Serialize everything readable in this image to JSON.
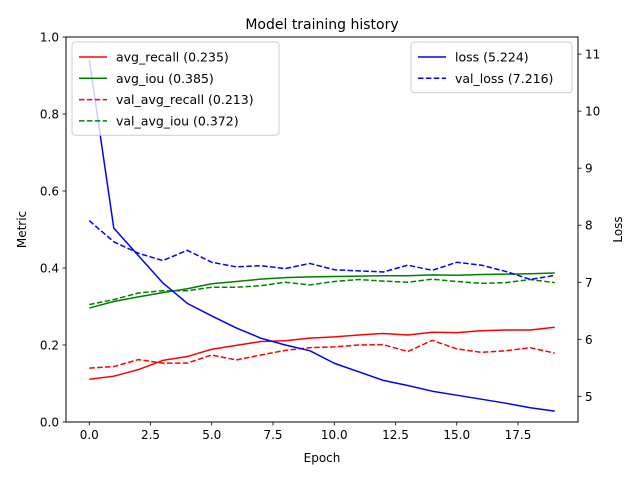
{
  "chart_data": {
    "type": "line",
    "title": "Model training history",
    "xlabel": "Epoch",
    "ylabel": "Metric",
    "y2label": "Loss",
    "xlim": [
      -0.95,
      19.95
    ],
    "ylim": [
      0,
      1
    ],
    "y2lim": [
      4.55,
      11.3
    ],
    "xticks": [
      "0.0",
      "2.5",
      "5.0",
      "7.5",
      "10.0",
      "12.5",
      "15.0",
      "17.5"
    ],
    "xtick_values": [
      0,
      2.5,
      5,
      7.5,
      10,
      12.5,
      15,
      17.5
    ],
    "yticks": [
      "0.0",
      "0.2",
      "0.4",
      "0.6",
      "0.8",
      "1.0"
    ],
    "ytick_values": [
      0,
      0.2,
      0.4,
      0.6,
      0.8,
      1.0
    ],
    "y2ticks": [
      "5",
      "6",
      "7",
      "8",
      "9",
      "10",
      "11"
    ],
    "y2tick_values": [
      5,
      6,
      7,
      8,
      9,
      10,
      11
    ],
    "grid": false,
    "x": [
      0,
      1,
      2,
      3,
      4,
      5,
      6,
      7,
      8,
      9,
      10,
      11,
      12,
      13,
      14,
      15,
      16,
      17,
      18,
      19
    ],
    "series": [
      {
        "name": "avg_recall (0.235)",
        "axis": "left",
        "color": "#ff0000",
        "style": "solid",
        "values": [
          0.111,
          0.119,
          0.136,
          0.16,
          0.17,
          0.189,
          0.199,
          0.209,
          0.211,
          0.218,
          0.221,
          0.226,
          0.23,
          0.226,
          0.233,
          0.232,
          0.237,
          0.239,
          0.239,
          0.246
        ]
      },
      {
        "name": "avg_iou (0.385)",
        "axis": "left",
        "color": "#008000",
        "style": "solid",
        "values": [
          0.296,
          0.313,
          0.325,
          0.336,
          0.346,
          0.359,
          0.365,
          0.371,
          0.375,
          0.377,
          0.378,
          0.379,
          0.38,
          0.38,
          0.382,
          0.381,
          0.383,
          0.384,
          0.385,
          0.387
        ]
      },
      {
        "name": "val_avg_recall (0.213)",
        "axis": "left",
        "color": "#ff0000",
        "style": "dashed",
        "values": [
          0.14,
          0.144,
          0.162,
          0.153,
          0.153,
          0.174,
          0.161,
          0.174,
          0.186,
          0.193,
          0.195,
          0.2,
          0.201,
          0.183,
          0.212,
          0.19,
          0.181,
          0.185,
          0.193,
          0.179
        ]
      },
      {
        "name": "val_avg_iou (0.372)",
        "axis": "left",
        "color": "#008000",
        "style": "dashed",
        "values": [
          0.305,
          0.318,
          0.335,
          0.341,
          0.341,
          0.35,
          0.35,
          0.354,
          0.363,
          0.356,
          0.365,
          0.37,
          0.366,
          0.363,
          0.371,
          0.365,
          0.36,
          0.362,
          0.37,
          0.362
        ]
      },
      {
        "name": "loss (5.224)",
        "axis": "right",
        "color": "#0000ff",
        "style": "solid",
        "values": [
          10.9,
          7.95,
          7.47,
          6.99,
          6.63,
          6.41,
          6.2,
          6.02,
          5.9,
          5.8,
          5.58,
          5.43,
          5.28,
          5.19,
          5.09,
          5.02,
          4.95,
          4.88,
          4.8,
          4.74
        ]
      },
      {
        "name": "val_loss (7.216)",
        "axis": "right",
        "color": "#0000ff",
        "style": "dashed",
        "values": [
          8.08,
          7.71,
          7.51,
          7.38,
          7.56,
          7.35,
          7.27,
          7.29,
          7.24,
          7.33,
          7.22,
          7.2,
          7.18,
          7.3,
          7.21,
          7.35,
          7.3,
          7.19,
          7.05,
          7.12
        ]
      }
    ],
    "legends": [
      {
        "placement": "upper-left",
        "series": [
          0,
          1,
          2,
          3
        ]
      },
      {
        "placement": "upper-right",
        "series": [
          4,
          5
        ]
      }
    ]
  }
}
